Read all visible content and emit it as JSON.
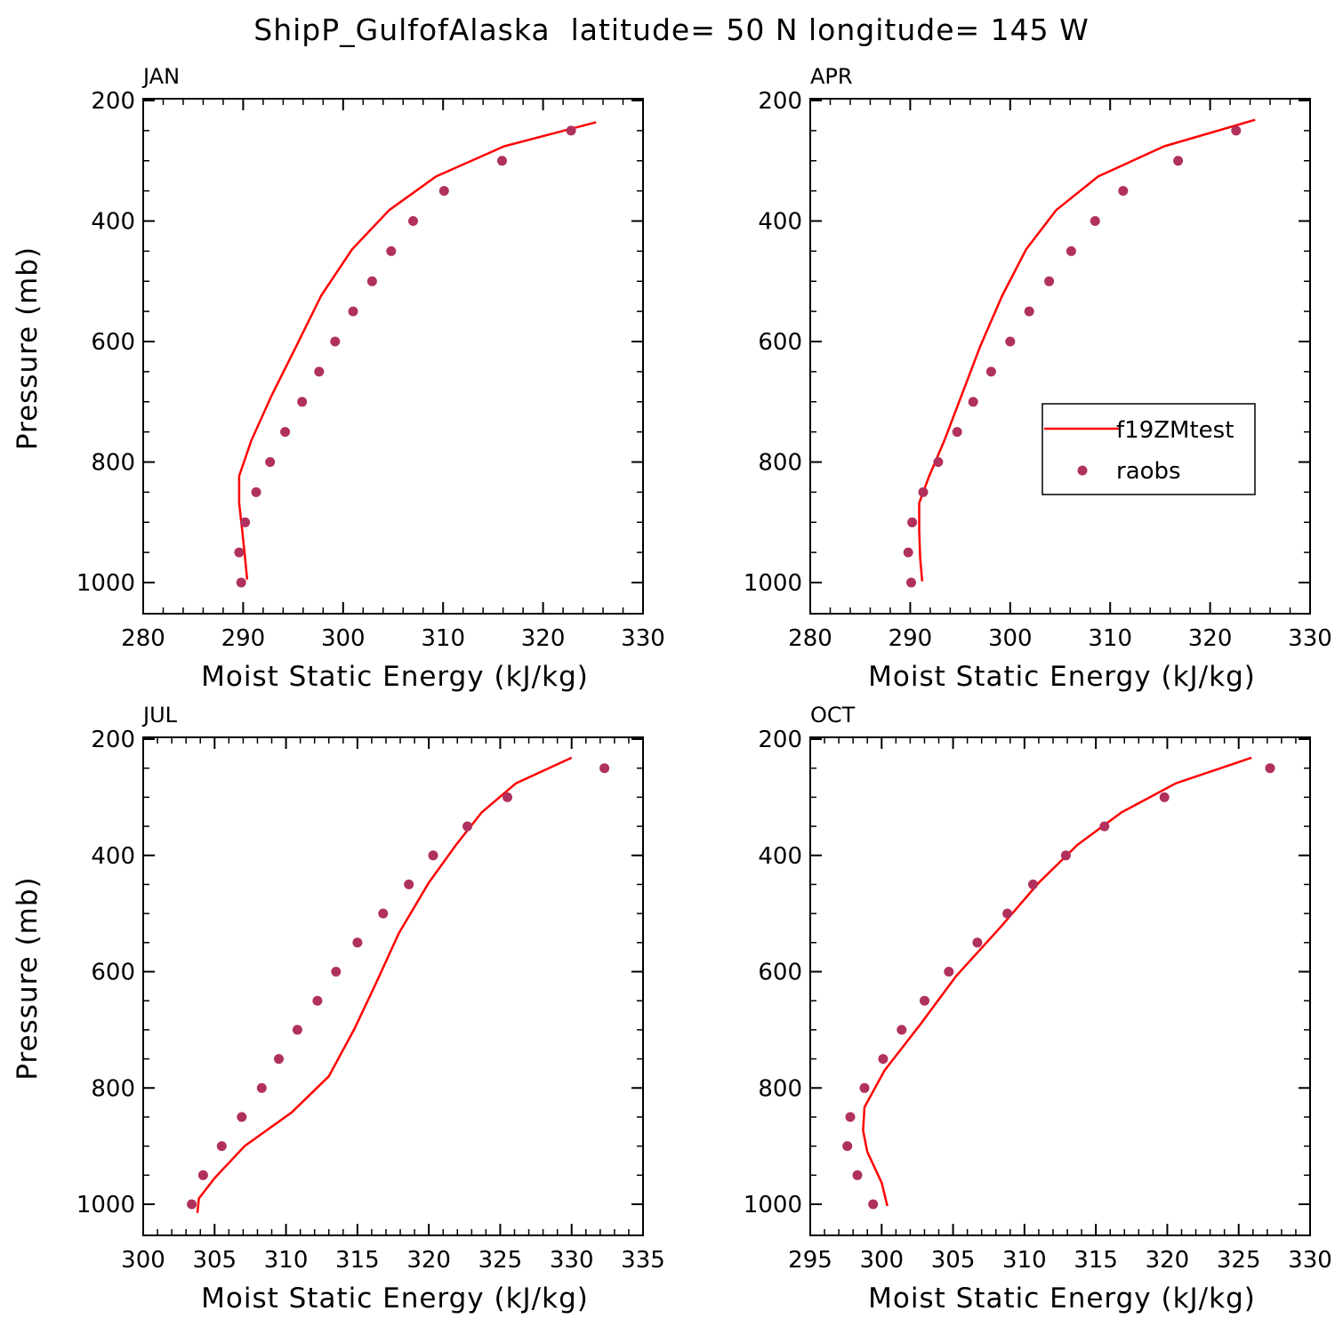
{
  "title": "ShipP_GulfofAlaska  latitude= 50 N longitude= 145 W",
  "colors": {
    "model": "#ff0000",
    "obs": "#b0305e",
    "frame": "#000000"
  },
  "legend": {
    "items": [
      "f19ZMtest",
      "raobs"
    ],
    "placement": "APR panel, lower right"
  },
  "chart_data": [
    {
      "type": "line",
      "label": "JAN",
      "xlabel": "Moist Static Energy (kJ/kg)",
      "ylabel": "Pressure (mb)",
      "xlim": [
        280,
        330
      ],
      "ylim": [
        1000,
        200
      ],
      "xticks": [
        "280",
        "290",
        "300",
        "310",
        "320",
        "330"
      ],
      "yticks": [
        "200",
        "400",
        "600",
        "800",
        "1000"
      ],
      "series": [
        {
          "name": "f19ZMtest",
          "style": "line",
          "y": [
            236,
            276,
            326,
            382,
            447,
            524,
            608,
            691,
            765,
            823,
            868,
            913,
            960,
            995
          ],
          "x": [
            325.3,
            316.1,
            309.3,
            304.6,
            300.9,
            297.8,
            295.3,
            292.8,
            290.8,
            289.6,
            289.6,
            289.9,
            290.2,
            290.4
          ]
        },
        {
          "name": "raobs",
          "style": "markers",
          "y": [
            250,
            300,
            350,
            400,
            450,
            500,
            550,
            600,
            650,
            700,
            750,
            800,
            850,
            900,
            950,
            1000
          ],
          "x": [
            322.8,
            315.9,
            310.1,
            307.0,
            304.8,
            302.9,
            301.0,
            299.2,
            297.6,
            295.9,
            294.2,
            292.7,
            291.3,
            290.2,
            289.6,
            289.8
          ]
        }
      ]
    },
    {
      "type": "line",
      "label": "APR",
      "xlabel": "Moist Static Energy (kJ/kg)",
      "ylabel": "",
      "xlim": [
        280,
        330
      ],
      "ylim": [
        1000,
        200
      ],
      "xticks": [
        "280",
        "290",
        "300",
        "310",
        "320",
        "330"
      ],
      "yticks": [
        "200",
        "400",
        "600",
        "800",
        "1000"
      ],
      "series": [
        {
          "name": "f19ZMtest",
          "style": "line",
          "y": [
            232,
            276,
            326,
            382,
            447,
            524,
            608,
            691,
            765,
            823,
            868,
            913,
            960,
            998
          ],
          "x": [
            324.5,
            315.4,
            308.8,
            304.6,
            301.6,
            299.2,
            297.0,
            295.1,
            293.4,
            291.9,
            290.9,
            290.9,
            291.0,
            291.2
          ]
        },
        {
          "name": "raobs",
          "style": "markers",
          "y": [
            250,
            300,
            350,
            400,
            450,
            500,
            550,
            600,
            650,
            700,
            750,
            800,
            850,
            900,
            950,
            1000
          ],
          "x": [
            322.6,
            316.8,
            311.3,
            308.5,
            306.1,
            303.9,
            301.9,
            300.0,
            298.1,
            296.3,
            294.7,
            292.8,
            291.3,
            290.2,
            289.8,
            290.1
          ]
        }
      ]
    },
    {
      "type": "line",
      "label": "JUL",
      "xlabel": "Moist Static Energy (kJ/kg)",
      "ylabel": "Pressure (mb)",
      "xlim": [
        300,
        335
      ],
      "ylim": [
        1000,
        200
      ],
      "xticks": [
        "300",
        "305",
        "310",
        "315",
        "320",
        "325",
        "330",
        "335"
      ],
      "yticks": [
        "200",
        "400",
        "600",
        "800",
        "1000"
      ],
      "series": [
        {
          "name": "f19ZMtest",
          "style": "line",
          "y": [
            232,
            276,
            326,
            382,
            447,
            534,
            620,
            698,
            780,
            842,
            900,
            955,
            990,
            1015
          ],
          "x": [
            330.0,
            326.1,
            323.7,
            321.9,
            320.0,
            317.9,
            316.3,
            314.8,
            313.0,
            310.4,
            307.1,
            305.0,
            303.9,
            303.8
          ]
        },
        {
          "name": "raobs",
          "style": "markers",
          "y": [
            250,
            300,
            350,
            400,
            450,
            500,
            550,
            600,
            650,
            700,
            750,
            800,
            850,
            900,
            950,
            1000
          ],
          "x": [
            332.3,
            325.5,
            322.7,
            320.3,
            318.6,
            316.8,
            315.0,
            313.5,
            312.2,
            310.8,
            309.5,
            308.3,
            306.9,
            305.5,
            304.2,
            303.4
          ]
        }
      ]
    },
    {
      "type": "line",
      "label": "OCT",
      "xlabel": "Moist Static Energy (kJ/kg)",
      "ylabel": "",
      "xlim": [
        295,
        330
      ],
      "ylim": [
        1000,
        200
      ],
      "xticks": [
        "295",
        "300",
        "305",
        "310",
        "315",
        "320",
        "325",
        "330"
      ],
      "yticks": [
        "200",
        "400",
        "600",
        "800",
        "1000"
      ],
      "series": [
        {
          "name": "f19ZMtest",
          "style": "line",
          "y": [
            232,
            276,
            326,
            382,
            447,
            524,
            608,
            691,
            770,
            833,
            873,
            910,
            963,
            1003
          ],
          "x": [
            325.9,
            320.6,
            316.8,
            313.7,
            311.0,
            308.3,
            305.2,
            302.7,
            300.2,
            298.8,
            298.7,
            299.0,
            300.0,
            300.4
          ]
        },
        {
          "name": "raobs",
          "style": "markers",
          "y": [
            250,
            300,
            350,
            400,
            450,
            500,
            550,
            600,
            650,
            700,
            750,
            800,
            850,
            900,
            950,
            1000
          ],
          "x": [
            327.2,
            319.8,
            315.6,
            312.9,
            310.6,
            308.8,
            306.7,
            304.7,
            303.0,
            301.4,
            300.1,
            298.8,
            297.8,
            297.6,
            298.3,
            299.4
          ]
        }
      ]
    }
  ]
}
